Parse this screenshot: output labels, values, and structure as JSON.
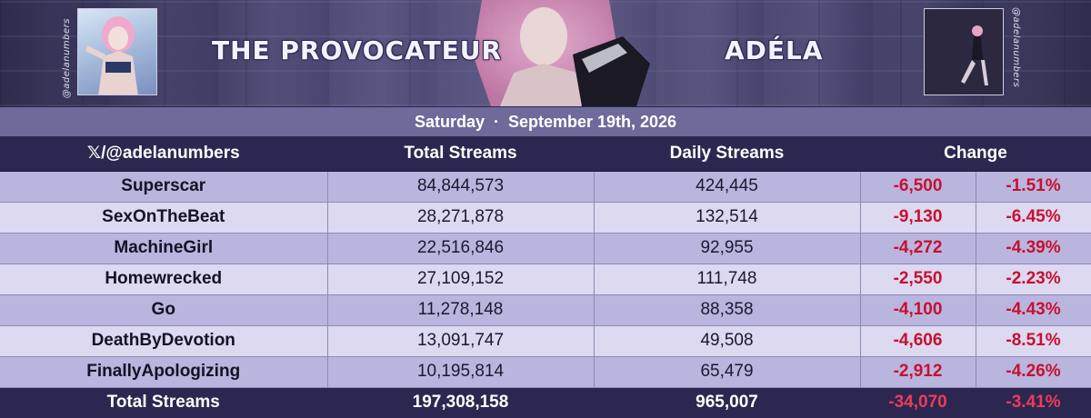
{
  "banner": {
    "album_title": "THE PROVOCATEUR",
    "artist_name": "ADÉLA",
    "watermark_left": "@adelanumbers",
    "watermark_right": "@adelanumbers"
  },
  "date": {
    "day": "Saturday",
    "separator": "·",
    "full_date": "September 19th, 2026"
  },
  "table": {
    "headers": {
      "handle": "𝕏/@adelanumbers",
      "total": "Total Streams",
      "daily": "Daily Streams",
      "change": "Change"
    },
    "rows": [
      {
        "song": "Superscar",
        "total": "84,844,573",
        "daily": "424,445",
        "change_abs": "-6,500",
        "change_pct": "-1.51%"
      },
      {
        "song": "SexOnTheBeat",
        "total": "28,271,878",
        "daily": "132,514",
        "change_abs": "-9,130",
        "change_pct": "-6.45%"
      },
      {
        "song": "MachineGirl",
        "total": "22,516,846",
        "daily": "92,955",
        "change_abs": "-4,272",
        "change_pct": "-4.39%"
      },
      {
        "song": "Homewrecked",
        "total": "27,109,152",
        "daily": "111,748",
        "change_abs": "-2,550",
        "change_pct": "-2.23%"
      },
      {
        "song": "Go",
        "total": "11,278,148",
        "daily": "88,358",
        "change_abs": "-4,100",
        "change_pct": "-4.43%"
      },
      {
        "song": "DeathByDevotion",
        "total": "13,091,747",
        "daily": "49,508",
        "change_abs": "-4,606",
        "change_pct": "-8.51%"
      },
      {
        "song": "FinallyApologizing",
        "total": "10,195,814",
        "daily": "65,479",
        "change_abs": "-2,912",
        "change_pct": "-4.26%"
      }
    ],
    "footer": {
      "label": "Total Streams",
      "total": "197,308,158",
      "daily": "965,007",
      "change_abs": "-34,070",
      "change_pct": "-3.41%"
    }
  },
  "colors": {
    "header_bg": "#2b2750",
    "row_odd": "#b9b5df",
    "row_even": "#dcd9f0",
    "negative": "#c8102e",
    "date_bar": "#6e6a9a"
  }
}
